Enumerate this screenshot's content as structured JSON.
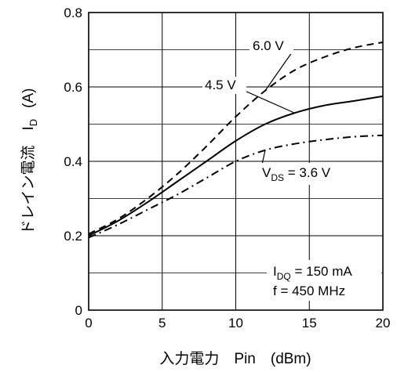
{
  "chart_data": {
    "type": "line",
    "xlabel": "入力電力　Pin　(dBm)",
    "ylabel": {
      "main": "ドレイン電流　I",
      "sub": "D",
      "unit": "(A)"
    },
    "xlim": [
      0,
      20
    ],
    "ylim": [
      0,
      0.8
    ],
    "xticks": [
      "0",
      "5",
      "10",
      "15",
      "20"
    ],
    "yticks": [
      "0",
      "0.2",
      "0.4",
      "0.6",
      "0.8"
    ],
    "grid": true,
    "series": [
      {
        "name": "6.0 V",
        "style": "dashed",
        "x": [
          0,
          2,
          4,
          6,
          8,
          10,
          12,
          14,
          16,
          18,
          20
        ],
        "y": [
          0.205,
          0.245,
          0.3,
          0.365,
          0.44,
          0.52,
          0.59,
          0.645,
          0.68,
          0.705,
          0.72
        ]
      },
      {
        "name": "4.5 V",
        "style": "solid",
        "x": [
          0,
          2,
          4,
          6,
          8,
          10,
          12,
          14,
          16,
          18,
          20
        ],
        "y": [
          0.2,
          0.24,
          0.29,
          0.345,
          0.4,
          0.455,
          0.5,
          0.53,
          0.55,
          0.562,
          0.575
        ]
      },
      {
        "name": "V_DS = 3.6 V",
        "style": "dashdot",
        "x": [
          0,
          2,
          4,
          6,
          8,
          10,
          12,
          14,
          16,
          18,
          20
        ],
        "y": [
          0.195,
          0.23,
          0.27,
          0.31,
          0.355,
          0.4,
          0.43,
          0.447,
          0.458,
          0.466,
          0.47
        ]
      }
    ],
    "annotations": {
      "s60": "6.0 V",
      "s45": "4.5 V",
      "vds_main": "V",
      "vds_sub": "DS",
      "vds_rest": " = 3.6 V",
      "idq_main": "I",
      "idq_sub": "DQ",
      "idq_rest": " = 150 mA",
      "freq": "f = 450 MHz"
    }
  }
}
